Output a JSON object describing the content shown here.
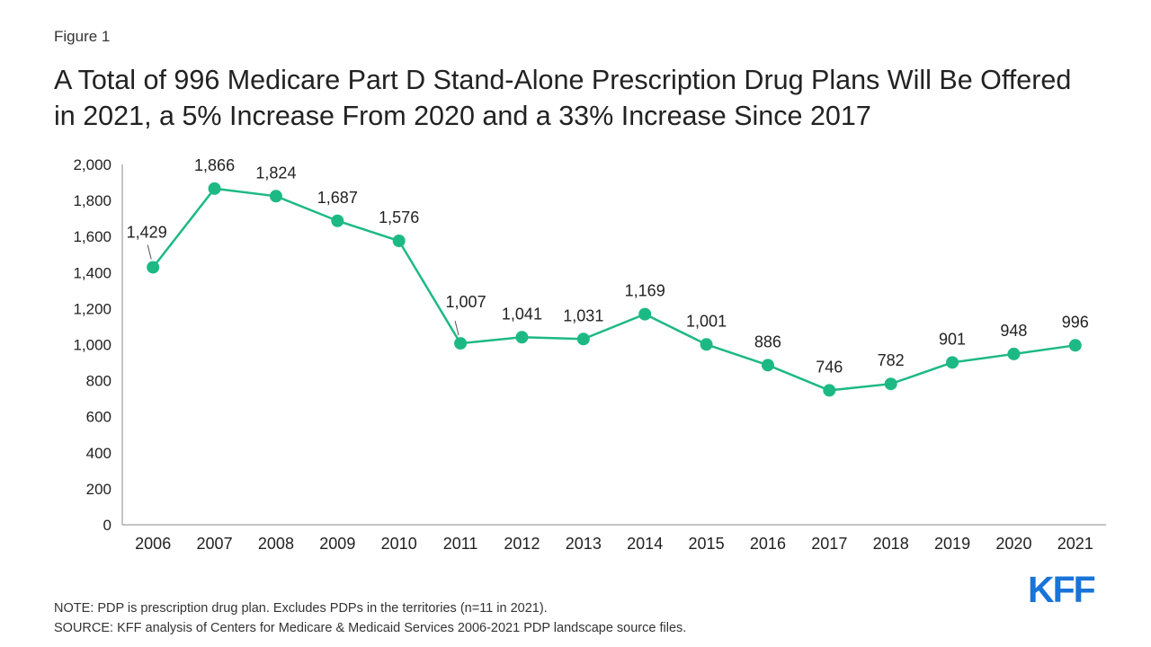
{
  "figure_label": "Figure 1",
  "title": "A Total of 996 Medicare Part D Stand-Alone Prescription Drug Plans Will Be Offered in 2021, a 5% Increase From 2020 and a 33% Increase Since 2017",
  "notes": {
    "note": "NOTE: PDP is prescription drug plan. Excludes PDPs in the territories (n=11 in 2021).",
    "source": "SOURCE: KFF analysis of Centers for Medicare & Medicaid Services 2006-2021 PDP landscape source files."
  },
  "logo_text": "KFF",
  "colors": {
    "line": "#1db985",
    "axis": "#888888",
    "text": "#222222",
    "logo": "#1874d8"
  },
  "chart_data": {
    "type": "line",
    "title": "",
    "xlabel": "",
    "ylabel": "",
    "categories": [
      "2006",
      "2007",
      "2008",
      "2009",
      "2010",
      "2011",
      "2012",
      "2013",
      "2014",
      "2015",
      "2016",
      "2017",
      "2018",
      "2019",
      "2020",
      "2021"
    ],
    "series": [
      {
        "values": [
          1429,
          1866,
          1824,
          1687,
          1576,
          1007,
          1041,
          1031,
          1169,
          1001,
          886,
          746,
          782,
          901,
          948,
          996
        ],
        "labels": [
          "1,429",
          "1,866",
          "1,824",
          "1,687",
          "1,576",
          "1,007",
          "1,041",
          "1,031",
          "1,169",
          "1,001",
          "886",
          "746",
          "782",
          "901",
          "948",
          "996"
        ]
      }
    ],
    "ylim": [
      0,
      2000
    ],
    "yticks": [
      0,
      200,
      400,
      600,
      800,
      1000,
      1200,
      1400,
      1600,
      1800,
      2000
    ],
    "ytick_labels": [
      "0",
      "200",
      "400",
      "600",
      "800",
      "1,000",
      "1,200",
      "1,400",
      "1,600",
      "1,800",
      "2,000"
    ],
    "grid": false,
    "legend": "none",
    "markers": "circle"
  }
}
